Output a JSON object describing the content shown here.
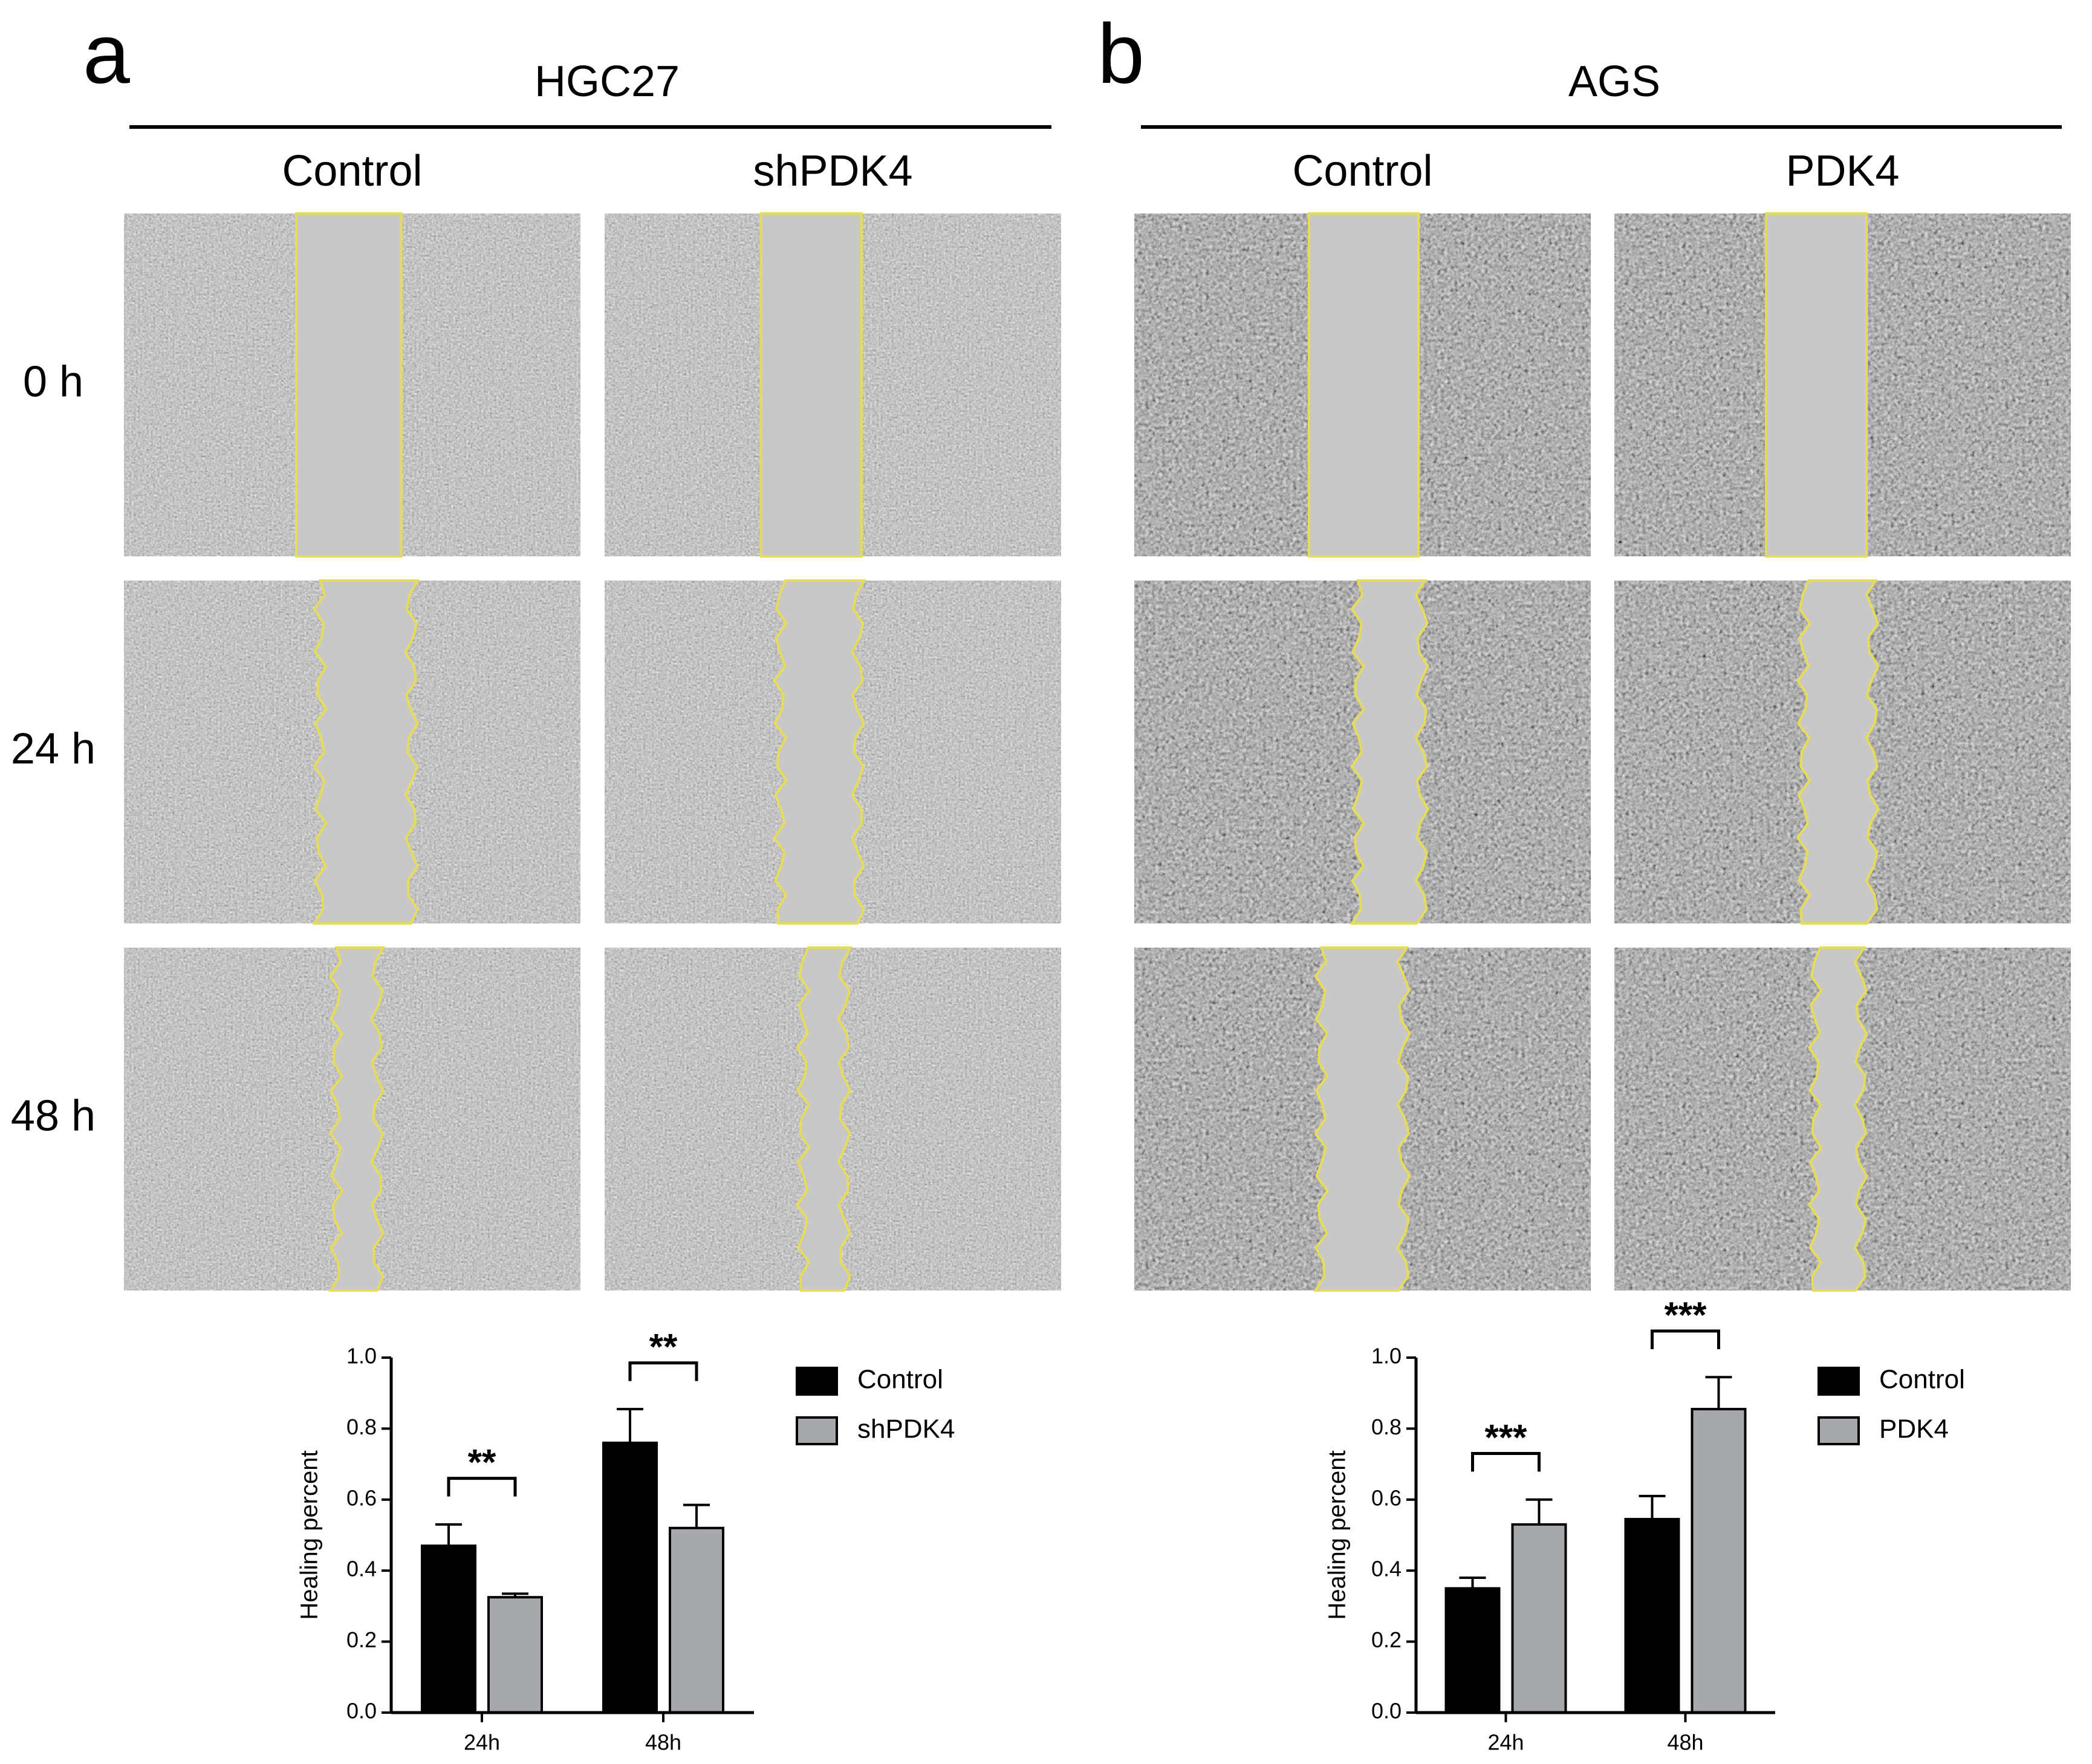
{
  "panels": [
    {
      "label": "a",
      "cell_line": "HGC27",
      "columns": [
        "Control",
        "shPDK4"
      ]
    },
    {
      "label": "b",
      "cell_line": "AGS",
      "columns": [
        "Control",
        "PDK4"
      ]
    }
  ],
  "row_labels": [
    "0 h",
    "24 h",
    "48 h"
  ],
  "chart_data": [
    {
      "type": "bar",
      "y_label": "Healing percent",
      "categories": [
        "24h",
        "48h"
      ],
      "series": [
        {
          "name": "Control",
          "color": "#000000",
          "values": [
            0.47,
            0.76
          ],
          "errors": [
            0.06,
            0.095
          ]
        },
        {
          "name": "shPDK4",
          "color": "#a7a8ac",
          "values": [
            0.325,
            0.52
          ],
          "errors": [
            0.01,
            0.065
          ]
        }
      ],
      "significance": [
        "**",
        "**"
      ],
      "ylim": [
        0,
        1
      ],
      "yticks": [
        {
          "value": 0,
          "label": "0.0"
        },
        0.2,
        0.4,
        0.6,
        0.8,
        {
          "value": 1,
          "label": "1.0"
        }
      ]
    },
    {
      "type": "bar",
      "y_label": "Healing percent",
      "categories": [
        "24h",
        "48h"
      ],
      "series": [
        {
          "name": "Control",
          "color": "#000000",
          "values": [
            0.35,
            0.545
          ],
          "errors": [
            0.03,
            0.065
          ]
        },
        {
          "name": "PDK4",
          "color": "#a7a8ac",
          "values": [
            0.53,
            0.855
          ],
          "errors": [
            0.07,
            0.09
          ]
        }
      ],
      "significance": [
        "***",
        "***"
      ],
      "ylim": [
        0,
        1
      ],
      "yticks": [
        {
          "value": 0,
          "label": "0.0"
        },
        0.2,
        0.4,
        0.6,
        0.8,
        {
          "value": 1,
          "label": "1.0"
        }
      ]
    }
  ]
}
